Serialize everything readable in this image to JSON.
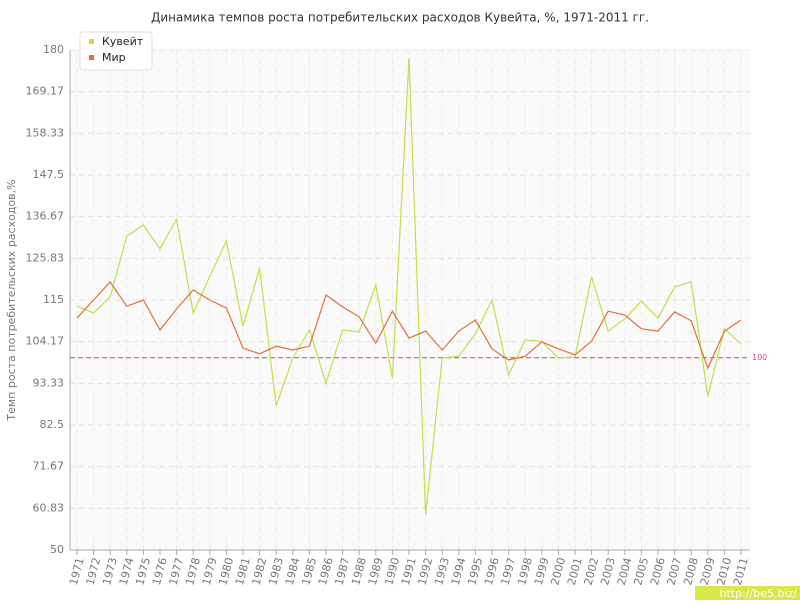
{
  "chart_data": {
    "type": "line",
    "title": "Динамика темпов роста потребительских расходов Кувейта, %, 1971-2011 гг.",
    "y_label": "Темп роста потребительских расходов,%",
    "categories": [
      "1971",
      "1972",
      "1973",
      "1974",
      "1975",
      "1976",
      "1977",
      "1978",
      "1979",
      "1980",
      "1981",
      "1982",
      "1983",
      "1984",
      "1985",
      "1986",
      "1987",
      "1988",
      "1989",
      "1990",
      "1991",
      "1992",
      "1993",
      "1994",
      "1995",
      "1996",
      "1997",
      "1998",
      "1999",
      "2000",
      "2001",
      "2002",
      "2003",
      "2004",
      "2005",
      "2006",
      "2007",
      "2008",
      "2009",
      "2010",
      "2011"
    ],
    "series": [
      {
        "name": "Кувейт",
        "color": "#bfe04a",
        "values": [
          113.4,
          111.6,
          115.8,
          131.6,
          134.5,
          128.3,
          136.1,
          111.6,
          121.2,
          130.3,
          108.2,
          123.3,
          87.4,
          99.9,
          107.2,
          93.4,
          107.2,
          106.7,
          118.9,
          94.7,
          177.9,
          59.1,
          99.9,
          100.4,
          106.2,
          115,
          95.5,
          104.6,
          104.3,
          99.9,
          100.2,
          121,
          106.9,
          110.1,
          114.7,
          110.3,
          118.4,
          119.7,
          90,
          107.5,
          103.6
        ]
      },
      {
        "name": "Мир",
        "color": "#e0703a",
        "values": [
          110.3,
          115,
          119.7,
          113.4,
          115,
          107.2,
          112.7,
          117.6,
          115,
          112.9,
          102.5,
          101,
          103,
          102,
          103,
          116.3,
          113.2,
          110.6,
          103.8,
          112.1,
          105.1,
          106.9,
          102,
          106.9,
          109.8,
          102.3,
          99.4,
          100.4,
          104.1,
          102.3,
          100.7,
          104.3,
          112.1,
          111.1,
          107.5,
          106.9,
          111.9,
          109.6,
          97.3,
          106.9,
          109.8
        ]
      }
    ],
    "ylim": [
      50,
      180
    ],
    "yticks": [
      50,
      60.83,
      71.67,
      82.5,
      93.33,
      104.17,
      115,
      125.83,
      136.67,
      147.5,
      158.33,
      169.17,
      180
    ],
    "reference_line": 100,
    "reference_color": "#c0506a",
    "grid": true,
    "legend": "top-left",
    "watermark": "http://be5.biz/"
  }
}
